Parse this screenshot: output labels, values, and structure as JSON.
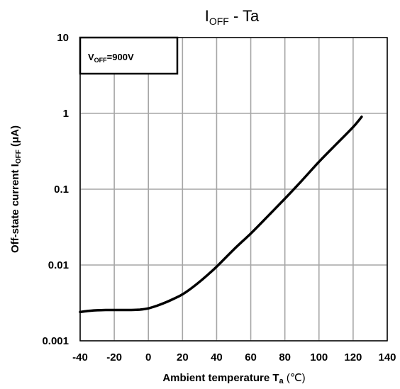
{
  "chart_data": {
    "type": "line",
    "title": {
      "main": "I",
      "sub": "OFF",
      "rest": " - Ta"
    },
    "xlabel": {
      "main": "Ambient temperature   T",
      "sub": "a",
      "unit": "  (℃)"
    },
    "ylabel": {
      "main": "Off-state current   I",
      "sub": "OFF",
      "unit": "  (μA)"
    },
    "xlim": [
      -40,
      140
    ],
    "ylim": [
      0.001,
      10
    ],
    "yscale": "log",
    "grid": true,
    "x_ticks": [
      "-40",
      "-20",
      "0",
      "20",
      "40",
      "60",
      "80",
      "100",
      "120",
      "140"
    ],
    "y_ticks": [
      "10",
      "1",
      "0.1",
      "0.01",
      "0.001"
    ],
    "annotation": {
      "main": "V",
      "sub": "OFF",
      "rest": "=900V"
    },
    "series": [
      {
        "x": [
          -40,
          -35,
          -30,
          -25,
          -20,
          -15,
          -10,
          -5,
          0,
          5,
          10,
          15,
          20,
          25,
          30,
          35,
          40,
          50,
          60,
          70,
          80,
          90,
          100,
          110,
          120,
          125
        ],
        "y": [
          0.0024,
          0.00248,
          0.00253,
          0.00255,
          0.00255,
          0.00255,
          0.00255,
          0.00258,
          0.00268,
          0.0029,
          0.0032,
          0.0036,
          0.0041,
          0.0049,
          0.006,
          0.0075,
          0.0095,
          0.016,
          0.026,
          0.044,
          0.075,
          0.13,
          0.23,
          0.39,
          0.66,
          0.9
        ]
      }
    ],
    "colors": {
      "line": "#000000",
      "grid": "#a6a6a6",
      "frame": "#000000"
    }
  }
}
